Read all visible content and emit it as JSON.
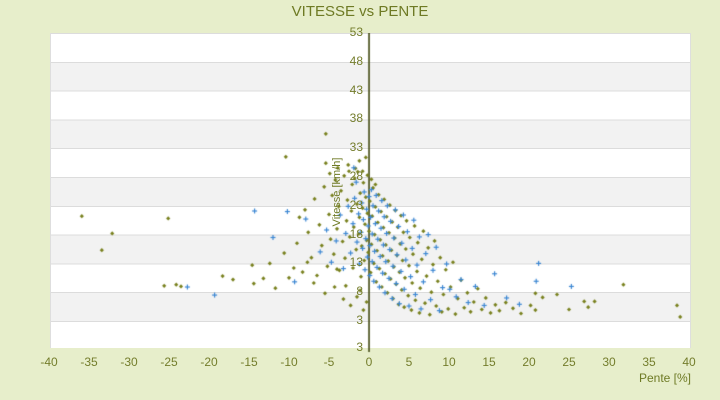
{
  "title": "VITESSE vs PENTE",
  "axes": {
    "x": {
      "label": "Pente [%]",
      "ticks": [
        -40,
        -35,
        -30,
        -25,
        -20,
        -15,
        -10,
        -5,
        0,
        5,
        10,
        15,
        20,
        25,
        30,
        35,
        40
      ]
    },
    "y": {
      "label": "Vitesse [km/h]",
      "ticks": [
        53,
        48,
        43,
        38,
        33,
        28,
        23,
        18,
        13,
        8,
        3
      ],
      "bottom_edge_label": "3"
    }
  },
  "colors": {
    "page_background": "#e7eecb",
    "plot_background": "#ffffff",
    "band": "#f2f2f2",
    "gridline": "#dcdcdc",
    "text_olive": "#6e7a24",
    "zero_axis_line": "#4d5420",
    "series_olive": "#78801d",
    "series_blue": "#3c87d3"
  },
  "chart_data": {
    "type": "scatter",
    "title": "VITESSE vs PENTE",
    "xlabel": "Pente [%]",
    "ylabel": "Vitesse [km/h]",
    "xlim": [
      -40,
      40
    ],
    "ylim": [
      -2,
      53
    ],
    "x_tick_step": 5,
    "y_tick_step": 5,
    "grid": "horizontal-bands",
    "legend": "none",
    "zero_axis_line_x": 0,
    "series": [
      {
        "name": "vitesse-olive",
        "marker": "diamond",
        "color": "#78801d",
        "points": [
          [
            -35.9,
            21.2
          ],
          [
            -33.4,
            15.3
          ],
          [
            -32.1,
            18.2
          ],
          [
            -25.1,
            20.8
          ],
          [
            -25.6,
            9.1
          ],
          [
            -24.1,
            9.3
          ],
          [
            -23.5,
            9.0
          ],
          [
            -18.3,
            10.8
          ],
          [
            -17.0,
            10.2
          ],
          [
            -14.6,
            12.7
          ],
          [
            -14.4,
            9.5
          ],
          [
            -13.2,
            10.4
          ],
          [
            -12.4,
            13.0
          ],
          [
            -11.7,
            8.7
          ],
          [
            -10.6,
            14.8
          ],
          [
            -10.4,
            31.5
          ],
          [
            -10.0,
            10.5
          ],
          [
            -9.4,
            12.2
          ],
          [
            -9.0,
            16.5
          ],
          [
            -8.7,
            21.0
          ],
          [
            -8.3,
            11.5
          ],
          [
            -8.0,
            22.3
          ],
          [
            -7.7,
            13.2
          ],
          [
            -7.6,
            18.4
          ],
          [
            -7.2,
            14.0
          ],
          [
            -6.9,
            9.6
          ],
          [
            -6.8,
            24.2
          ],
          [
            -6.5,
            10.9
          ],
          [
            -6.2,
            19.7
          ],
          [
            -5.9,
            16.1
          ],
          [
            -5.6,
            26.3
          ],
          [
            -5.5,
            7.8
          ],
          [
            -5.4,
            35.5
          ],
          [
            -5.4,
            30.4
          ],
          [
            -5.2,
            12.5
          ],
          [
            -5.0,
            21.5
          ],
          [
            -4.9,
            28.6
          ],
          [
            -4.8,
            17.2
          ],
          [
            -4.6,
            24.8
          ],
          [
            -4.4,
            14.6
          ],
          [
            -4.3,
            8.9
          ],
          [
            -4.2,
            27.5
          ],
          [
            -4.0,
            19.0
          ],
          [
            -4.0,
            12.0
          ],
          [
            -3.9,
            29.6
          ],
          [
            -3.8,
            22.9
          ],
          [
            -3.7,
            11.8
          ],
          [
            -3.5,
            25.6
          ],
          [
            -3.3,
            16.8
          ],
          [
            -3.2,
            6.8
          ],
          [
            -3.1,
            28.2
          ],
          [
            -3.0,
            13.9
          ],
          [
            -2.9,
            9.1
          ],
          [
            -2.8,
            20.4
          ],
          [
            -2.7,
            24.0
          ],
          [
            -2.6,
            30.1
          ],
          [
            -2.5,
            29.0
          ],
          [
            -2.4,
            17.6
          ],
          [
            -2.3,
            5.7
          ],
          [
            -2.2,
            22.1
          ],
          [
            -2.1,
            26.7
          ],
          [
            -2.0,
            12.2
          ],
          [
            -1.9,
            19.3
          ],
          [
            -1.8,
            27.8
          ],
          [
            -1.7,
            29.5
          ],
          [
            -1.6,
            15.4
          ],
          [
            -1.5,
            23.3
          ],
          [
            -1.5,
            7.2
          ],
          [
            -1.4,
            28.9
          ],
          [
            -1.3,
            18.1
          ],
          [
            -1.2,
            30.8
          ],
          [
            -1.2,
            21.0
          ],
          [
            -1.1,
            25.2
          ],
          [
            -1.1,
            8.3
          ],
          [
            -1.0,
            10.7
          ],
          [
            -0.9,
            16.0
          ],
          [
            -0.8,
            29.0
          ],
          [
            -0.8,
            22.6
          ],
          [
            -0.7,
            27.0
          ],
          [
            -0.7,
            4.9
          ],
          [
            -0.6,
            13.5
          ],
          [
            -0.5,
            19.8
          ],
          [
            -0.4,
            31.4
          ],
          [
            -0.4,
            24.5
          ],
          [
            -0.3,
            17.0
          ],
          [
            -0.3,
            6.3
          ],
          [
            -0.2,
            28.3
          ],
          [
            -0.2,
            21.7
          ],
          [
            -0.1,
            14.9
          ],
          [
            0.0,
            18.6
          ],
          [
            0.1,
            23.8
          ],
          [
            0.2,
            11.4
          ],
          [
            0.3,
            27.6
          ],
          [
            0.3,
            16.3
          ],
          [
            0.4,
            21.2
          ],
          [
            0.5,
            26.1
          ],
          [
            0.6,
            13.0
          ],
          [
            0.7,
            18.0
          ],
          [
            0.8,
            26.7
          ],
          [
            0.8,
            22.8
          ],
          [
            0.9,
            9.8
          ],
          [
            1.0,
            15.2
          ],
          [
            1.1,
            20.1
          ],
          [
            1.2,
            24.9
          ],
          [
            1.3,
            12.1
          ],
          [
            1.4,
            17.1
          ],
          [
            1.5,
            22.0
          ],
          [
            1.6,
            8.9
          ],
          [
            1.7,
            14.3
          ],
          [
            1.8,
            19.2
          ],
          [
            1.9,
            24.1
          ],
          [
            2.0,
            11.2
          ],
          [
            2.1,
            16.2
          ],
          [
            2.2,
            21.1
          ],
          [
            2.3,
            7.9
          ],
          [
            2.4,
            13.4
          ],
          [
            2.5,
            18.3
          ],
          [
            2.6,
            23.1
          ],
          [
            2.7,
            10.3
          ],
          [
            2.8,
            15.3
          ],
          [
            2.9,
            20.2
          ],
          [
            3.0,
            6.9
          ],
          [
            3.1,
            12.4
          ],
          [
            3.2,
            17.4
          ],
          [
            3.3,
            22.2
          ],
          [
            3.4,
            9.4
          ],
          [
            3.5,
            14.4
          ],
          [
            3.6,
            19.3
          ],
          [
            3.7,
            5.9
          ],
          [
            3.8,
            11.5
          ],
          [
            3.9,
            16.4
          ],
          [
            4.0,
            21.3
          ],
          [
            4.1,
            8.4
          ],
          [
            4.2,
            13.5
          ],
          [
            4.3,
            18.4
          ],
          [
            4.4,
            5.4
          ],
          [
            4.5,
            10.5
          ],
          [
            4.6,
            15.5
          ],
          [
            4.7,
            20.4
          ],
          [
            4.9,
            7.4
          ],
          [
            5.0,
            12.6
          ],
          [
            5.1,
            17.5
          ],
          [
            5.3,
            4.9
          ],
          [
            5.4,
            9.6
          ],
          [
            5.5,
            14.6
          ],
          [
            5.7,
            19.5
          ],
          [
            5.8,
            6.6
          ],
          [
            6.0,
            11.6
          ],
          [
            6.1,
            16.6
          ],
          [
            6.3,
            4.4
          ],
          [
            6.4,
            8.7
          ],
          [
            6.6,
            13.7
          ],
          [
            6.8,
            18.6
          ],
          [
            7.0,
            6.1
          ],
          [
            7.2,
            10.8
          ],
          [
            7.4,
            15.7
          ],
          [
            7.6,
            4.1
          ],
          [
            7.8,
            8.0
          ],
          [
            8.0,
            12.8
          ],
          [
            8.2,
            16.9
          ],
          [
            8.4,
            5.6
          ],
          [
            8.6,
            9.9
          ],
          [
            8.9,
            14.0
          ],
          [
            9.1,
            4.6
          ],
          [
            9.3,
            7.6
          ],
          [
            9.6,
            11.9
          ],
          [
            9.9,
            5.1
          ],
          [
            10.2,
            8.9
          ],
          [
            10.5,
            13.2
          ],
          [
            10.8,
            4.2
          ],
          [
            11.1,
            6.9
          ],
          [
            11.5,
            10.1
          ],
          [
            11.9,
            5.3
          ],
          [
            12.3,
            7.9
          ],
          [
            12.7,
            4.6
          ],
          [
            13.1,
            6.3
          ],
          [
            13.6,
            8.6
          ],
          [
            14.1,
            5.0
          ],
          [
            14.6,
            7.0
          ],
          [
            15.2,
            4.4
          ],
          [
            15.8,
            5.8
          ],
          [
            16.3,
            4.8
          ],
          [
            17.1,
            6.2
          ],
          [
            18.0,
            5.2
          ],
          [
            19.0,
            4.3
          ],
          [
            20.2,
            5.7
          ],
          [
            20.8,
            7.8
          ],
          [
            20.8,
            4.9
          ],
          [
            21.7,
            7.1
          ],
          [
            23.5,
            7.6
          ],
          [
            25.0,
            5.0
          ],
          [
            26.9,
            6.4
          ],
          [
            27.4,
            5.4
          ],
          [
            28.2,
            6.4
          ],
          [
            31.8,
            9.3
          ],
          [
            38.5,
            5.7
          ],
          [
            38.9,
            3.7
          ]
        ]
      },
      {
        "name": "vitesse-blue",
        "marker": "plus",
        "color": "#3c87d3",
        "points": [
          [
            -22.7,
            8.9
          ],
          [
            -19.3,
            7.5
          ],
          [
            -14.3,
            22.1
          ],
          [
            -12.0,
            17.5
          ],
          [
            -10.2,
            22.0
          ],
          [
            -9.3,
            9.8
          ],
          [
            -7.9,
            20.7
          ],
          [
            -6.1,
            15.0
          ],
          [
            -5.3,
            18.8
          ],
          [
            -4.7,
            13.2
          ],
          [
            -4.1,
            16.9
          ],
          [
            -3.6,
            21.4
          ],
          [
            -3.2,
            12.1
          ],
          [
            -2.9,
            18.2
          ],
          [
            -2.6,
            22.9
          ],
          [
            -2.3,
            14.8
          ],
          [
            -2.0,
            19.9
          ],
          [
            -1.9,
            29.6
          ],
          [
            -1.8,
            24.3
          ],
          [
            -1.6,
            27.1
          ],
          [
            -1.5,
            16.7
          ],
          [
            -1.3,
            21.6
          ],
          [
            -1.2,
            12.9
          ],
          [
            -1.0,
            18.4
          ],
          [
            -0.9,
            23.5
          ],
          [
            -0.8,
            15.6
          ],
          [
            -0.7,
            20.6
          ],
          [
            -0.6,
            25.4
          ],
          [
            -0.5,
            11.9
          ],
          [
            -0.4,
            17.3
          ],
          [
            -0.3,
            22.4
          ],
          [
            -0.2,
            14.1
          ],
          [
            -0.1,
            19.5
          ],
          [
            0.0,
            24.6
          ],
          [
            0.1,
            10.9
          ],
          [
            0.1,
            16.1
          ],
          [
            0.2,
            21.0
          ],
          [
            0.3,
            25.8
          ],
          [
            0.4,
            13.3
          ],
          [
            0.4,
            18.1
          ],
          [
            0.5,
            23.0
          ],
          [
            0.6,
            9.9
          ],
          [
            0.7,
            15.1
          ],
          [
            0.8,
            19.9
          ],
          [
            0.9,
            24.8
          ],
          [
            1.0,
            12.3
          ],
          [
            1.1,
            17.2
          ],
          [
            1.2,
            22.1
          ],
          [
            1.3,
            8.9
          ],
          [
            1.4,
            14.2
          ],
          [
            1.5,
            19.1
          ],
          [
            1.6,
            23.9
          ],
          [
            1.7,
            11.3
          ],
          [
            1.8,
            16.2
          ],
          [
            1.9,
            21.1
          ],
          [
            2.0,
            7.9
          ],
          [
            2.1,
            13.3
          ],
          [
            2.2,
            18.2
          ],
          [
            2.3,
            23.0
          ],
          [
            2.5,
            10.4
          ],
          [
            2.6,
            15.4
          ],
          [
            2.7,
            20.3
          ],
          [
            2.9,
            6.9
          ],
          [
            3.0,
            12.5
          ],
          [
            3.1,
            17.4
          ],
          [
            3.3,
            22.3
          ],
          [
            3.4,
            9.5
          ],
          [
            3.5,
            14.5
          ],
          [
            3.7,
            19.4
          ],
          [
            3.8,
            6.0
          ],
          [
            4.0,
            11.6
          ],
          [
            4.1,
            16.5
          ],
          [
            4.3,
            21.4
          ],
          [
            4.4,
            8.5
          ],
          [
            4.6,
            13.6
          ],
          [
            4.8,
            18.5
          ],
          [
            5.0,
            5.6
          ],
          [
            5.2,
            10.7
          ],
          [
            5.4,
            15.6
          ],
          [
            5.6,
            20.5
          ],
          [
            5.8,
            7.6
          ],
          [
            6.0,
            12.7
          ],
          [
            6.3,
            17.6
          ],
          [
            6.5,
            5.1
          ],
          [
            6.8,
            9.8
          ],
          [
            7.1,
            14.7
          ],
          [
            7.4,
            18.0
          ],
          [
            7.7,
            6.7
          ],
          [
            8.0,
            11.8
          ],
          [
            8.4,
            15.8
          ],
          [
            8.8,
            4.8
          ],
          [
            9.2,
            8.8
          ],
          [
            9.7,
            12.9
          ],
          [
            10.1,
            8.5
          ],
          [
            10.9,
            7.2
          ],
          [
            11.5,
            10.2
          ],
          [
            12.4,
            6.2
          ],
          [
            13.3,
            9.0
          ],
          [
            14.4,
            5.7
          ],
          [
            15.7,
            11.2
          ],
          [
            17.2,
            7.0
          ],
          [
            18.8,
            5.9
          ],
          [
            20.9,
            9.9
          ],
          [
            21.2,
            13.0
          ],
          [
            25.3,
            9.0
          ]
        ]
      }
    ]
  }
}
